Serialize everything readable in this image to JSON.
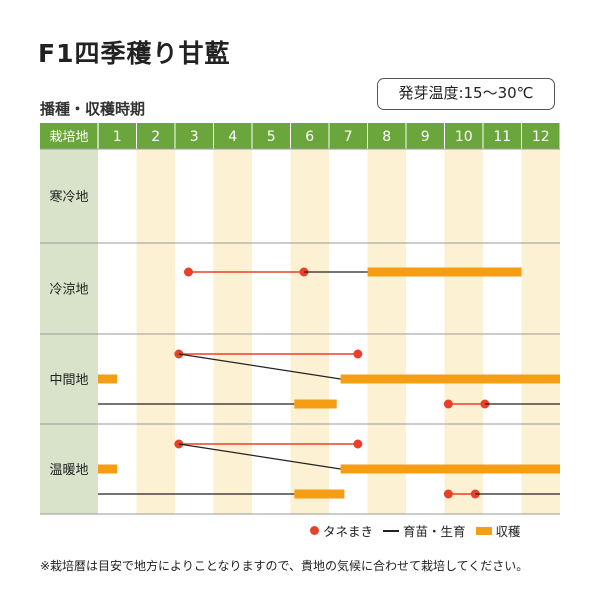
{
  "title": "F1四季穫り甘藍",
  "temperature": "発芽温度:15～30℃",
  "subtitle": "播種・収穫時期",
  "header_label": "栽培地",
  "months": [
    "1",
    "2",
    "3",
    "4",
    "5",
    "6",
    "7",
    "8",
    "9",
    "10",
    "11",
    "12"
  ],
  "regions": [
    "寒冷地",
    "冷涼地",
    "中間地",
    "温暖地"
  ],
  "legend": {
    "sow": "タネまき",
    "grow": "育苗・生育",
    "harvest": "収穫"
  },
  "note": "※栽培暦は目安で地方によりことなりますので、貴地の気候に合わせて栽培してください。",
  "colors": {
    "header_green": "#6aa63c",
    "region_bg": "#d8e3c9",
    "stripe": "#fcf1d2",
    "sow": "#e8402a",
    "harvest": "#f59e14",
    "grid": "#999999"
  },
  "chart_data": {
    "type": "gantt",
    "x_unit": "month",
    "x_range": [
      1,
      13
    ],
    "rows": [
      {
        "region": "寒冷地",
        "lane": 0,
        "items": []
      },
      {
        "region": "冷涼地",
        "lane": 0,
        "items": [
          {
            "kind": "sow_line",
            "from": 3.35,
            "to": 6.35
          },
          {
            "kind": "grow",
            "from": 6.35,
            "to": 8.0
          },
          {
            "kind": "harvest",
            "from": 8.0,
            "to": 12.0
          }
        ]
      },
      {
        "region": "中間地",
        "lane": 0,
        "items": [
          {
            "kind": "sow_line",
            "from": 3.1,
            "to": 7.75
          },
          {
            "kind": "harvest",
            "from": 1.0,
            "to": 1.5,
            "lane": 0.5
          },
          {
            "kind": "grow_diag",
            "from": 3.1,
            "to": 7.3
          },
          {
            "kind": "harvest",
            "from": 7.3,
            "to": 13.0,
            "lane": 0.5
          },
          {
            "kind": "grow",
            "from": 1.0,
            "to": 6.1,
            "lane": 1
          },
          {
            "kind": "harvest",
            "from": 6.1,
            "to": 7.2,
            "lane": 1
          },
          {
            "kind": "sow_line",
            "from": 10.1,
            "to": 11.05,
            "lane": 1
          },
          {
            "kind": "grow",
            "from": 11.05,
            "to": 13.0,
            "lane": 1
          }
        ]
      },
      {
        "region": "温暖地",
        "lane": 0,
        "items": [
          {
            "kind": "sow_line",
            "from": 3.1,
            "to": 7.75
          },
          {
            "kind": "harvest",
            "from": 1.0,
            "to": 1.5,
            "lane": 0.5
          },
          {
            "kind": "grow_diag",
            "from": 3.1,
            "to": 7.3
          },
          {
            "kind": "harvest",
            "from": 7.3,
            "to": 13.0,
            "lane": 0.5
          },
          {
            "kind": "grow",
            "from": 1.0,
            "to": 6.1,
            "lane": 1
          },
          {
            "kind": "harvest",
            "from": 6.1,
            "to": 7.4,
            "lane": 1
          },
          {
            "kind": "sow_line",
            "from": 10.1,
            "to": 10.8,
            "lane": 1
          },
          {
            "kind": "grow",
            "from": 10.8,
            "to": 13.0,
            "lane": 1
          }
        ]
      }
    ]
  }
}
